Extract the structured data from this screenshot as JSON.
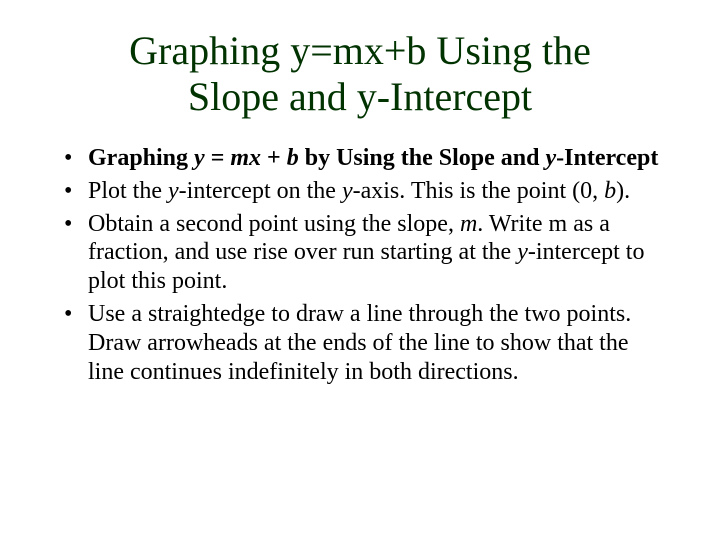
{
  "title_line1": "Graphing y=mx+b Using the",
  "title_line2": "Slope and y-Intercept",
  "bullets": [
    {
      "segments": [
        {
          "text": "Graphing ",
          "cls": "b"
        },
        {
          "text": "y ",
          "cls": "bi"
        },
        {
          "text": "= ",
          "cls": "b"
        },
        {
          "text": "mx ",
          "cls": "bi"
        },
        {
          "text": "+ ",
          "cls": "b"
        },
        {
          "text": "b ",
          "cls": "bi"
        },
        {
          "text": "by Using the Slope and ",
          "cls": "b"
        },
        {
          "text": "y",
          "cls": "bi"
        },
        {
          "text": "-Intercept",
          "cls": "b"
        }
      ]
    },
    {
      "segments": [
        {
          "text": "Plot the ",
          "cls": ""
        },
        {
          "text": "y",
          "cls": "i"
        },
        {
          "text": "-intercept on the ",
          "cls": ""
        },
        {
          "text": "y",
          "cls": "i"
        },
        {
          "text": "-axis. This is the point (0, ",
          "cls": ""
        },
        {
          "text": "b",
          "cls": "i"
        },
        {
          "text": ").",
          "cls": ""
        }
      ]
    },
    {
      "segments": [
        {
          "text": "Obtain a second point using the slope, ",
          "cls": ""
        },
        {
          "text": "m",
          "cls": "i"
        },
        {
          "text": ". Write m as a fraction, and use rise over run starting at the ",
          "cls": ""
        },
        {
          "text": "y",
          "cls": "i"
        },
        {
          "text": "-intercept to plot this point.",
          "cls": ""
        }
      ]
    },
    {
      "segments": [
        {
          "text": "Use a straightedge to draw a line through the two points. Draw arrowheads at the ends of the line to show that the line continues indefinitely in both directions.",
          "cls": ""
        }
      ]
    }
  ],
  "colors": {
    "title": "#003300",
    "body": "#000000",
    "background": "#ffffff"
  },
  "typography": {
    "title_fontsize": 40,
    "body_fontsize": 24,
    "font_family": "Times New Roman"
  }
}
